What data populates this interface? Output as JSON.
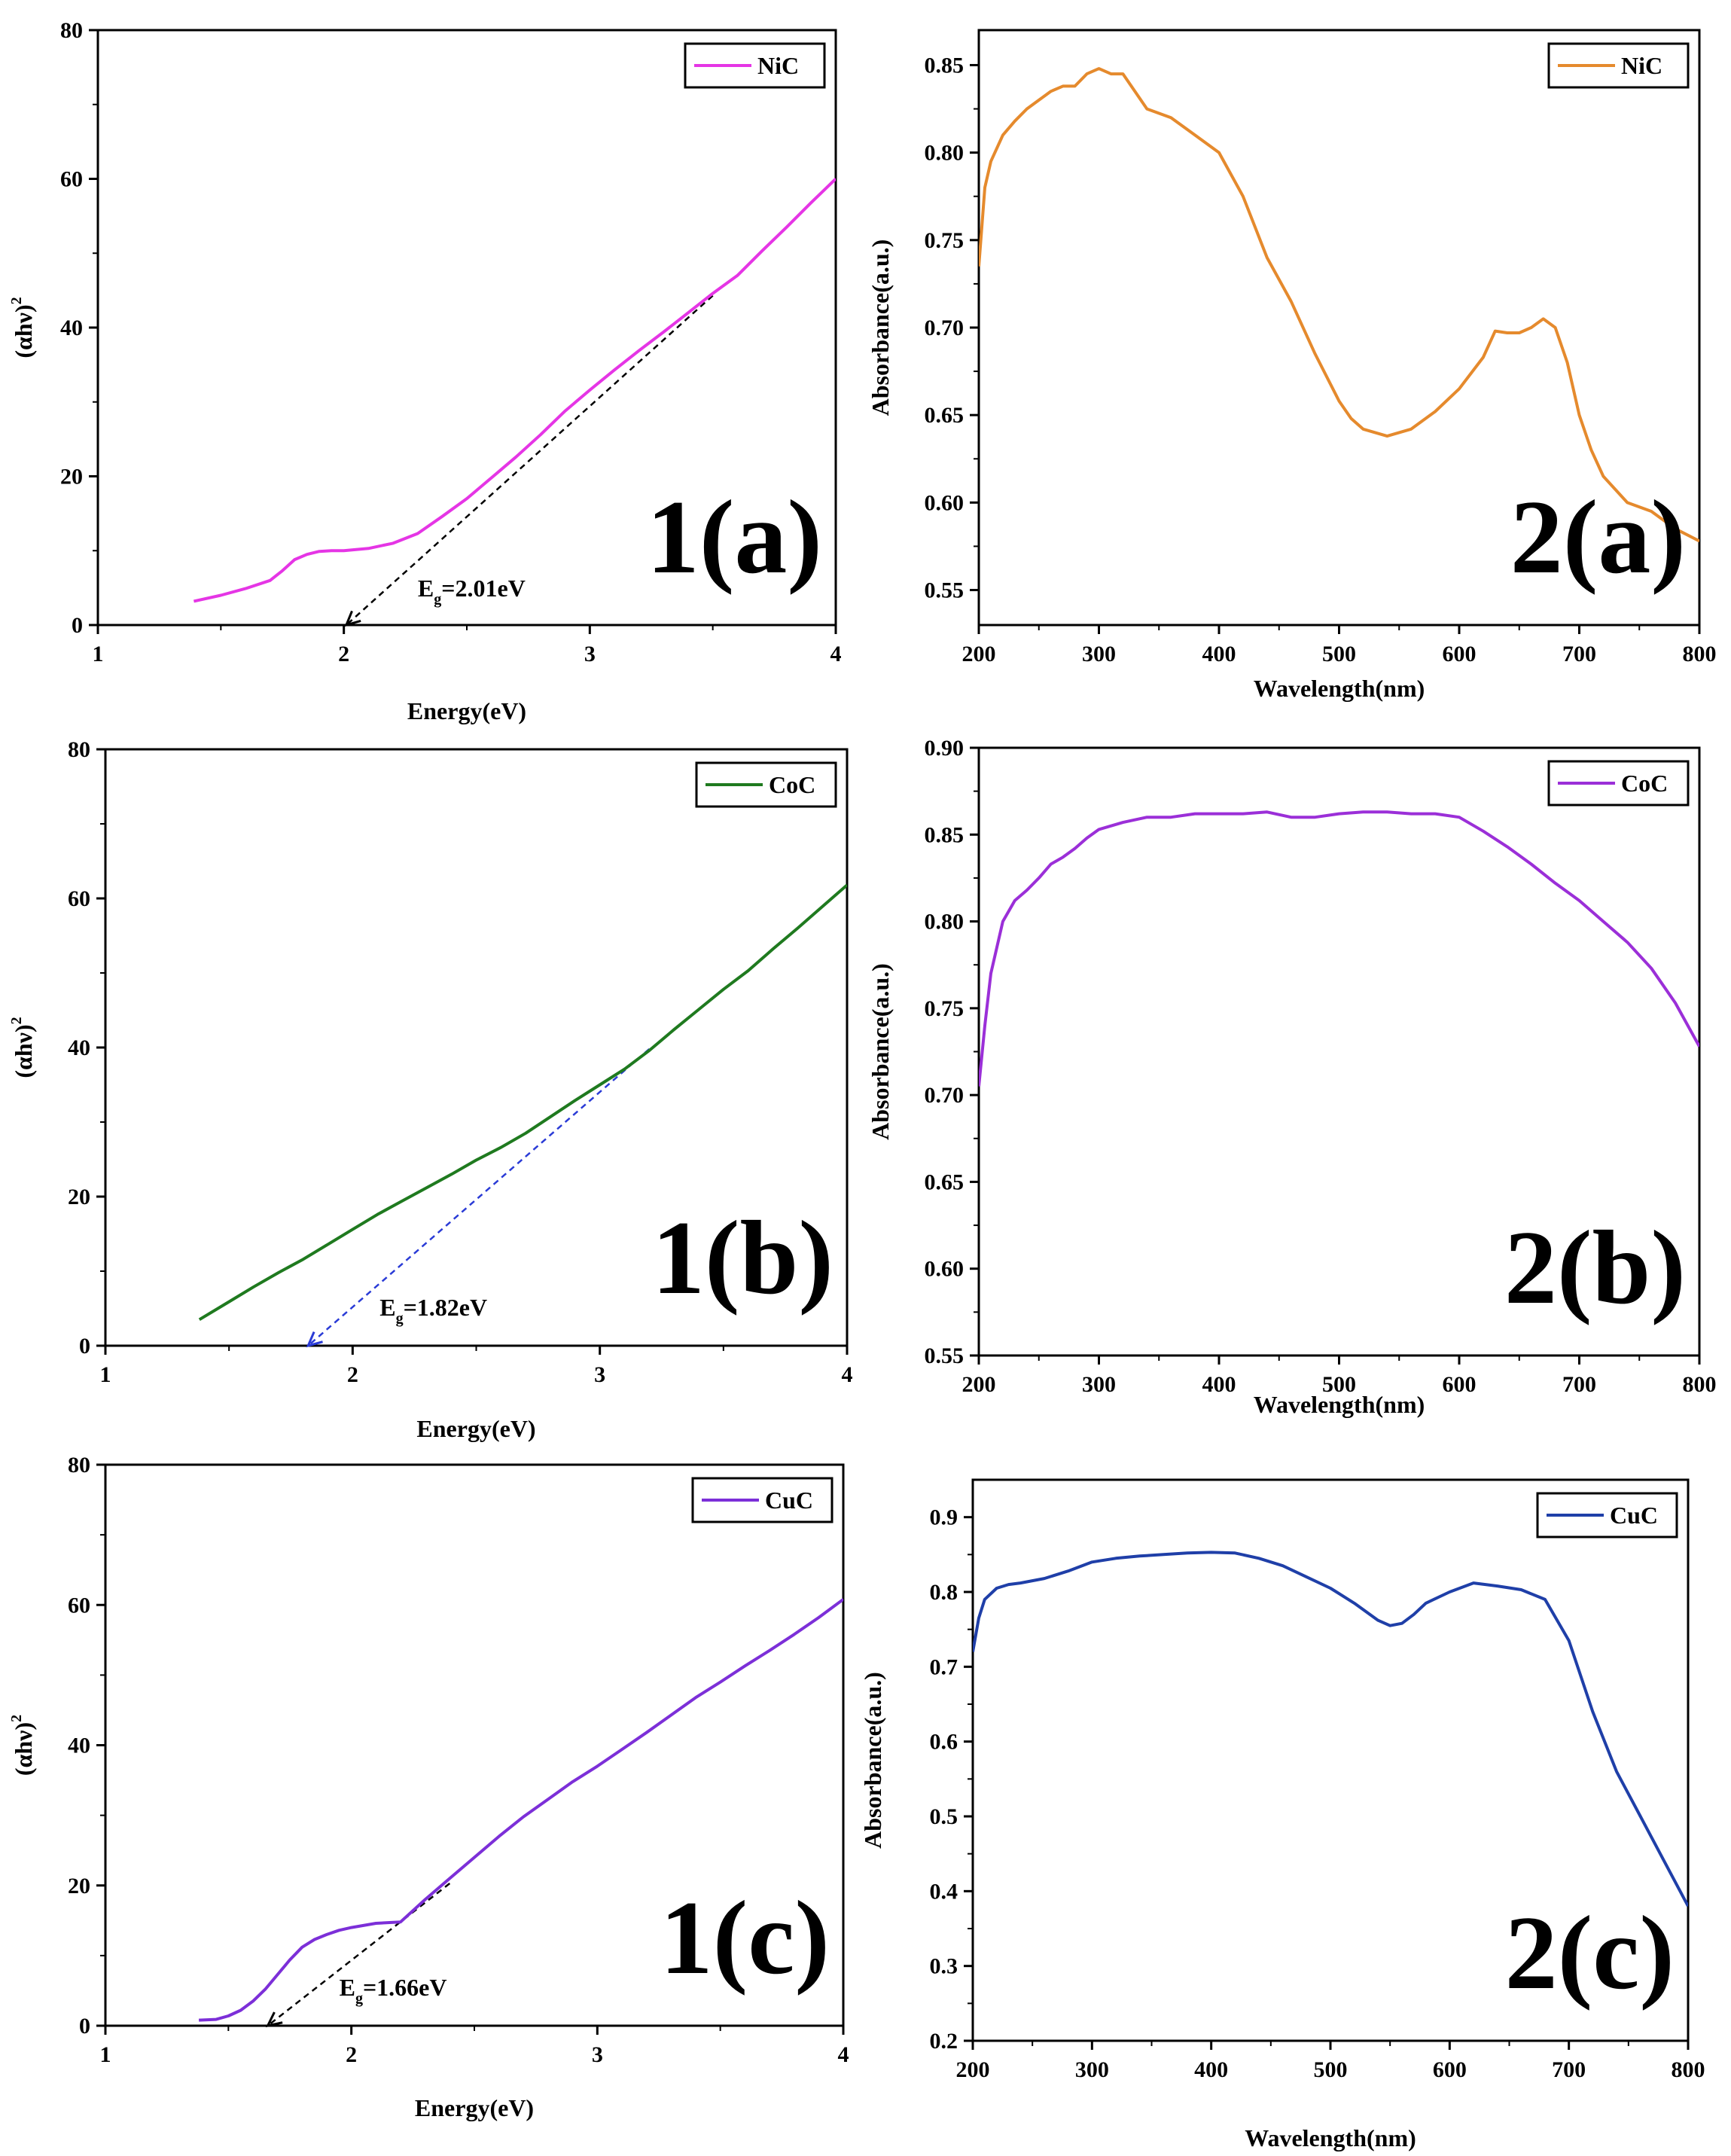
{
  "figure": {
    "background": "#ffffff",
    "axis_color": "#000000"
  },
  "chart_data": [
    {
      "id": "1a",
      "type": "line",
      "title": "",
      "panel_label": "1(a)",
      "xlabel": "Energy(eV)",
      "ylabel_main": "(αhν)",
      "ylabel_sup": "2",
      "xlim": [
        1,
        4
      ],
      "ylim": [
        0,
        80
      ],
      "xticks": [
        1,
        2,
        3,
        4
      ],
      "yticks": [
        0,
        20,
        40,
        60,
        80
      ],
      "grid": false,
      "legend": {
        "label": "NiC",
        "position": "top-right"
      },
      "series": [
        {
          "name": "NiC",
          "color": "#e535e5",
          "x": [
            1.39,
            1.5,
            1.6,
            1.7,
            1.75,
            1.8,
            1.85,
            1.9,
            1.95,
            2.0,
            2.1,
            2.2,
            2.3,
            2.4,
            2.5,
            2.6,
            2.7,
            2.8,
            2.9,
            3.0,
            3.1,
            3.2,
            3.3,
            3.4,
            3.5,
            3.6,
            3.7,
            3.8,
            3.9,
            4.0
          ],
          "y": [
            3.2,
            4.0,
            4.9,
            6.0,
            7.3,
            8.8,
            9.5,
            9.9,
            10.0,
            10.0,
            10.3,
            11.0,
            12.3,
            14.6,
            17.0,
            19.8,
            22.6,
            25.6,
            28.8,
            31.6,
            34.3,
            36.9,
            39.4,
            42.0,
            44.6,
            47.0,
            50.3,
            53.5,
            56.8,
            60.0
          ]
        }
      ],
      "fit_line": {
        "color": "#000000",
        "x": [
          2.01,
          3.5
        ],
        "y": [
          0,
          44.3
        ]
      },
      "eg_label": {
        "base": "E",
        "sub": "g",
        "value": "=2.01eV"
      }
    },
    {
      "id": "2a",
      "type": "line",
      "title": "",
      "panel_label": "2(a)",
      "xlabel": "Wavelength(nm)",
      "ylabel": "Absorbance(a.u.)",
      "xlim": [
        200,
        800
      ],
      "ylim": [
        0.53,
        0.87
      ],
      "xticks": [
        200,
        300,
        400,
        500,
        600,
        700,
        800
      ],
      "yticks": [
        0.55,
        0.6,
        0.65,
        0.7,
        0.75,
        0.8,
        0.85
      ],
      "ytick_labels": [
        "0.55",
        "0.60",
        "0.65",
        "0.70",
        "0.75",
        "0.80",
        "0.85"
      ],
      "grid": false,
      "legend": {
        "label": "NiC",
        "position": "top-right"
      },
      "series": [
        {
          "name": "NiC",
          "color": "#e58a2d",
          "x": [
            200,
            205,
            210,
            220,
            230,
            240,
            250,
            260,
            270,
            280,
            290,
            300,
            310,
            320,
            340,
            360,
            380,
            400,
            420,
            440,
            460,
            480,
            500,
            510,
            520,
            540,
            560,
            580,
            600,
            620,
            630,
            640,
            650,
            660,
            670,
            680,
            690,
            700,
            710,
            720,
            740,
            760,
            780,
            800
          ],
          "y": [
            0.735,
            0.78,
            0.795,
            0.81,
            0.818,
            0.825,
            0.83,
            0.835,
            0.838,
            0.838,
            0.845,
            0.848,
            0.845,
            0.845,
            0.825,
            0.82,
            0.81,
            0.8,
            0.775,
            0.74,
            0.715,
            0.685,
            0.658,
            0.648,
            0.642,
            0.638,
            0.642,
            0.652,
            0.665,
            0.683,
            0.698,
            0.697,
            0.697,
            0.7,
            0.705,
            0.7,
            0.68,
            0.65,
            0.63,
            0.615,
            0.6,
            0.595,
            0.585,
            0.578
          ]
        }
      ]
    },
    {
      "id": "1b",
      "type": "line",
      "title": "",
      "panel_label": "1(b)",
      "xlabel": "Energy(eV)",
      "ylabel_main": "(αhν)",
      "ylabel_sup": "2",
      "xlim": [
        1,
        4
      ],
      "ylim": [
        0,
        80
      ],
      "xticks": [
        1,
        2,
        3,
        4
      ],
      "yticks": [
        0,
        20,
        40,
        60,
        80
      ],
      "grid": false,
      "legend": {
        "label": "CoC",
        "position": "top-right"
      },
      "series": [
        {
          "name": "CoC",
          "color": "#1f7a1f",
          "x": [
            1.38,
            1.5,
            1.6,
            1.7,
            1.8,
            1.9,
            2.0,
            2.1,
            2.2,
            2.3,
            2.4,
            2.5,
            2.6,
            2.7,
            2.8,
            2.9,
            3.0,
            3.1,
            3.2,
            3.3,
            3.4,
            3.5,
            3.6,
            3.7,
            3.8,
            3.9,
            4.0
          ],
          "y": [
            3.5,
            5.9,
            7.9,
            9.8,
            11.6,
            13.6,
            15.6,
            17.6,
            19.4,
            21.2,
            23.0,
            24.9,
            26.6,
            28.5,
            30.7,
            32.9,
            35.0,
            37.1,
            39.6,
            42.4,
            45.1,
            47.8,
            50.3,
            53.2,
            56.0,
            58.9,
            61.8
          ]
        }
      ],
      "fit_line": {
        "color": "#2a3bd6",
        "x": [
          1.82,
          3.2
        ],
        "y": [
          0,
          39.8
        ]
      },
      "eg_label": {
        "base": "E",
        "sub": "g",
        "value": "=1.82eV"
      }
    },
    {
      "id": "2b",
      "type": "line",
      "title": "",
      "panel_label": "2(b)",
      "xlabel": "Wavelength(nm)",
      "ylabel": "Absorbance(a.u.)",
      "xlim": [
        200,
        800
      ],
      "ylim": [
        0.55,
        0.9
      ],
      "xticks": [
        200,
        300,
        400,
        500,
        600,
        700,
        800
      ],
      "yticks": [
        0.55,
        0.6,
        0.65,
        0.7,
        0.75,
        0.8,
        0.85,
        0.9
      ],
      "ytick_labels": [
        "0.55",
        "0.60",
        "0.65",
        "0.70",
        "0.75",
        "0.80",
        "0.85",
        "0.90"
      ],
      "grid": false,
      "legend": {
        "label": "CoC",
        "position": "top-right"
      },
      "series": [
        {
          "name": "CoC",
          "color": "#9b2fd8",
          "x": [
            200,
            205,
            210,
            220,
            230,
            240,
            250,
            260,
            270,
            280,
            290,
            300,
            320,
            340,
            360,
            380,
            400,
            420,
            440,
            460,
            480,
            500,
            520,
            540,
            560,
            580,
            600,
            620,
            640,
            660,
            680,
            700,
            720,
            740,
            760,
            780,
            800
          ],
          "y": [
            0.705,
            0.74,
            0.77,
            0.8,
            0.812,
            0.818,
            0.825,
            0.833,
            0.837,
            0.842,
            0.848,
            0.853,
            0.857,
            0.86,
            0.86,
            0.862,
            0.862,
            0.862,
            0.863,
            0.86,
            0.86,
            0.862,
            0.863,
            0.863,
            0.862,
            0.862,
            0.86,
            0.852,
            0.843,
            0.833,
            0.822,
            0.812,
            0.8,
            0.788,
            0.773,
            0.753,
            0.728
          ]
        }
      ]
    },
    {
      "id": "1c",
      "type": "line",
      "title": "",
      "panel_label": "1(c)",
      "xlabel": "Energy(eV)",
      "ylabel_main": "(αhν)",
      "ylabel_sup": "2",
      "xlim": [
        1,
        4
      ],
      "ylim": [
        0,
        80
      ],
      "xticks": [
        1,
        2,
        3,
        4
      ],
      "yticks": [
        0,
        20,
        40,
        60,
        80
      ],
      "grid": false,
      "legend": {
        "label": "CuC",
        "position": "top-right"
      },
      "series": [
        {
          "name": "CuC",
          "color": "#7c2fd8",
          "x": [
            1.38,
            1.45,
            1.5,
            1.55,
            1.6,
            1.65,
            1.7,
            1.75,
            1.8,
            1.85,
            1.9,
            1.95,
            2.0,
            2.1,
            2.2,
            2.3,
            2.4,
            2.5,
            2.6,
            2.7,
            2.8,
            2.9,
            3.0,
            3.1,
            3.2,
            3.3,
            3.4,
            3.5,
            3.6,
            3.7,
            3.8,
            3.9,
            4.0
          ],
          "y": [
            0.8,
            0.9,
            1.4,
            2.2,
            3.5,
            5.2,
            7.3,
            9.4,
            11.2,
            12.3,
            13.0,
            13.6,
            14.0,
            14.6,
            14.8,
            18.0,
            21.0,
            24.0,
            27.0,
            29.8,
            32.3,
            34.8,
            37.0,
            39.4,
            41.8,
            44.3,
            46.8,
            49.0,
            51.3,
            53.5,
            55.8,
            58.2,
            60.8
          ]
        }
      ],
      "fit_line": {
        "color": "#000000",
        "x": [
          1.66,
          2.4
        ],
        "y": [
          0,
          20.3
        ]
      },
      "eg_label": {
        "base": "E",
        "sub": "g",
        "value": "=1.66eV"
      }
    },
    {
      "id": "2c",
      "type": "line",
      "title": "",
      "panel_label": "2(c)",
      "xlabel": "Wavelength(nm)",
      "ylabel": "Absorbance(a.u.)",
      "xlim": [
        200,
        800
      ],
      "ylim": [
        0.2,
        0.95
      ],
      "xticks": [
        200,
        300,
        400,
        500,
        600,
        700,
        800
      ],
      "yticks": [
        0.2,
        0.3,
        0.4,
        0.5,
        0.6,
        0.7,
        0.8,
        0.9
      ],
      "ytick_labels": [
        "0.2",
        "0.3",
        "0.4",
        "0.5",
        "0.6",
        "0.7",
        "0.8",
        "0.9"
      ],
      "grid": false,
      "legend": {
        "label": "CuC",
        "position": "top-right"
      },
      "series": [
        {
          "name": "CuC",
          "color": "#1f3fa8",
          "x": [
            200,
            205,
            210,
            220,
            230,
            240,
            260,
            280,
            300,
            320,
            340,
            360,
            380,
            400,
            420,
            440,
            460,
            480,
            500,
            520,
            540,
            550,
            560,
            570,
            580,
            600,
            620,
            640,
            660,
            680,
            700,
            720,
            740,
            760,
            780,
            800
          ],
          "y": [
            0.72,
            0.765,
            0.79,
            0.805,
            0.81,
            0.812,
            0.818,
            0.828,
            0.84,
            0.845,
            0.848,
            0.85,
            0.852,
            0.853,
            0.852,
            0.845,
            0.835,
            0.82,
            0.805,
            0.785,
            0.762,
            0.755,
            0.758,
            0.77,
            0.785,
            0.8,
            0.812,
            0.808,
            0.803,
            0.79,
            0.735,
            0.64,
            0.56,
            0.5,
            0.44,
            0.38
          ]
        }
      ]
    }
  ]
}
